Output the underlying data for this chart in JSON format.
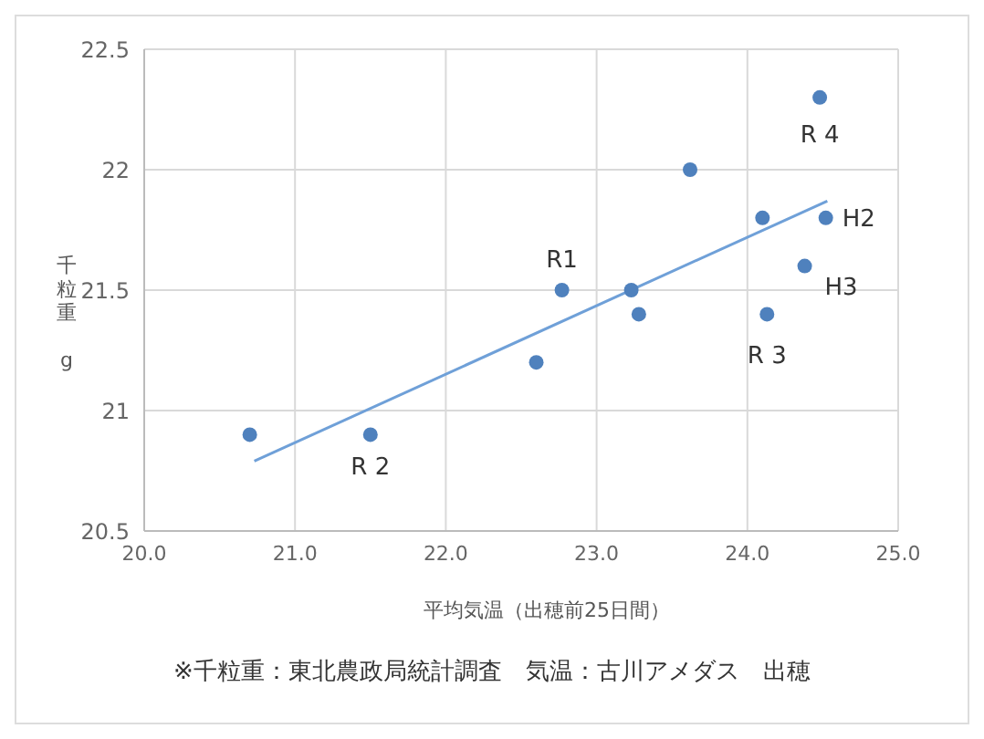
{
  "chart_data": {
    "type": "scatter",
    "xlabel": "平均気温（出穂前25日間）",
    "ylabel": "千粒重 g",
    "x": [
      20.7,
      21.5,
      22.6,
      22.77,
      23.23,
      23.28,
      23.62,
      24.1,
      24.13,
      24.38,
      24.48,
      24.52
    ],
    "series": [
      {
        "color": "#4f81bd",
        "marker": "circle",
        "values": [
          20.9,
          20.9,
          21.2,
          21.5,
          21.5,
          21.4,
          22.0,
          21.8,
          21.4,
          21.6,
          22.3,
          21.8
        ]
      },
      {
        "type": "line",
        "color": "#6fa0d8",
        "x": [
          20.73,
          24.53
        ],
        "values": [
          20.79,
          21.87
        ]
      }
    ],
    "xlim": [
      20,
      25
    ],
    "xticks": [
      {
        "value": 20,
        "label": "20.0"
      },
      {
        "value": 21,
        "label": "21.0"
      },
      {
        "value": 22,
        "label": "22.0"
      },
      {
        "value": 23,
        "label": "23.0"
      },
      {
        "value": 24,
        "label": "24.0"
      },
      {
        "value": 25,
        "label": "25.0"
      }
    ],
    "ylim": [
      20.5,
      22.5
    ],
    "yticks": [
      20.5,
      21,
      21.5,
      22,
      22.5
    ],
    "grid": true,
    "legend": false,
    "annotations": [
      {
        "text": "R 2",
        "x": 21.5,
        "y": 20.9
      },
      {
        "text": "R1",
        "x": 22.77,
        "y": 21.5
      },
      {
        "text": "R 3",
        "x": 24.13,
        "y": 21.4
      },
      {
        "text": "H3",
        "x": 24.38,
        "y": 21.6
      },
      {
        "text": "R 4",
        "x": 24.48,
        "y": 22.3
      },
      {
        "text": "H2",
        "x": 24.52,
        "y": 21.8
      },
      "※千粒重：東北農政局統計調査　気温：古川アメダス　出穂"
    ]
  }
}
